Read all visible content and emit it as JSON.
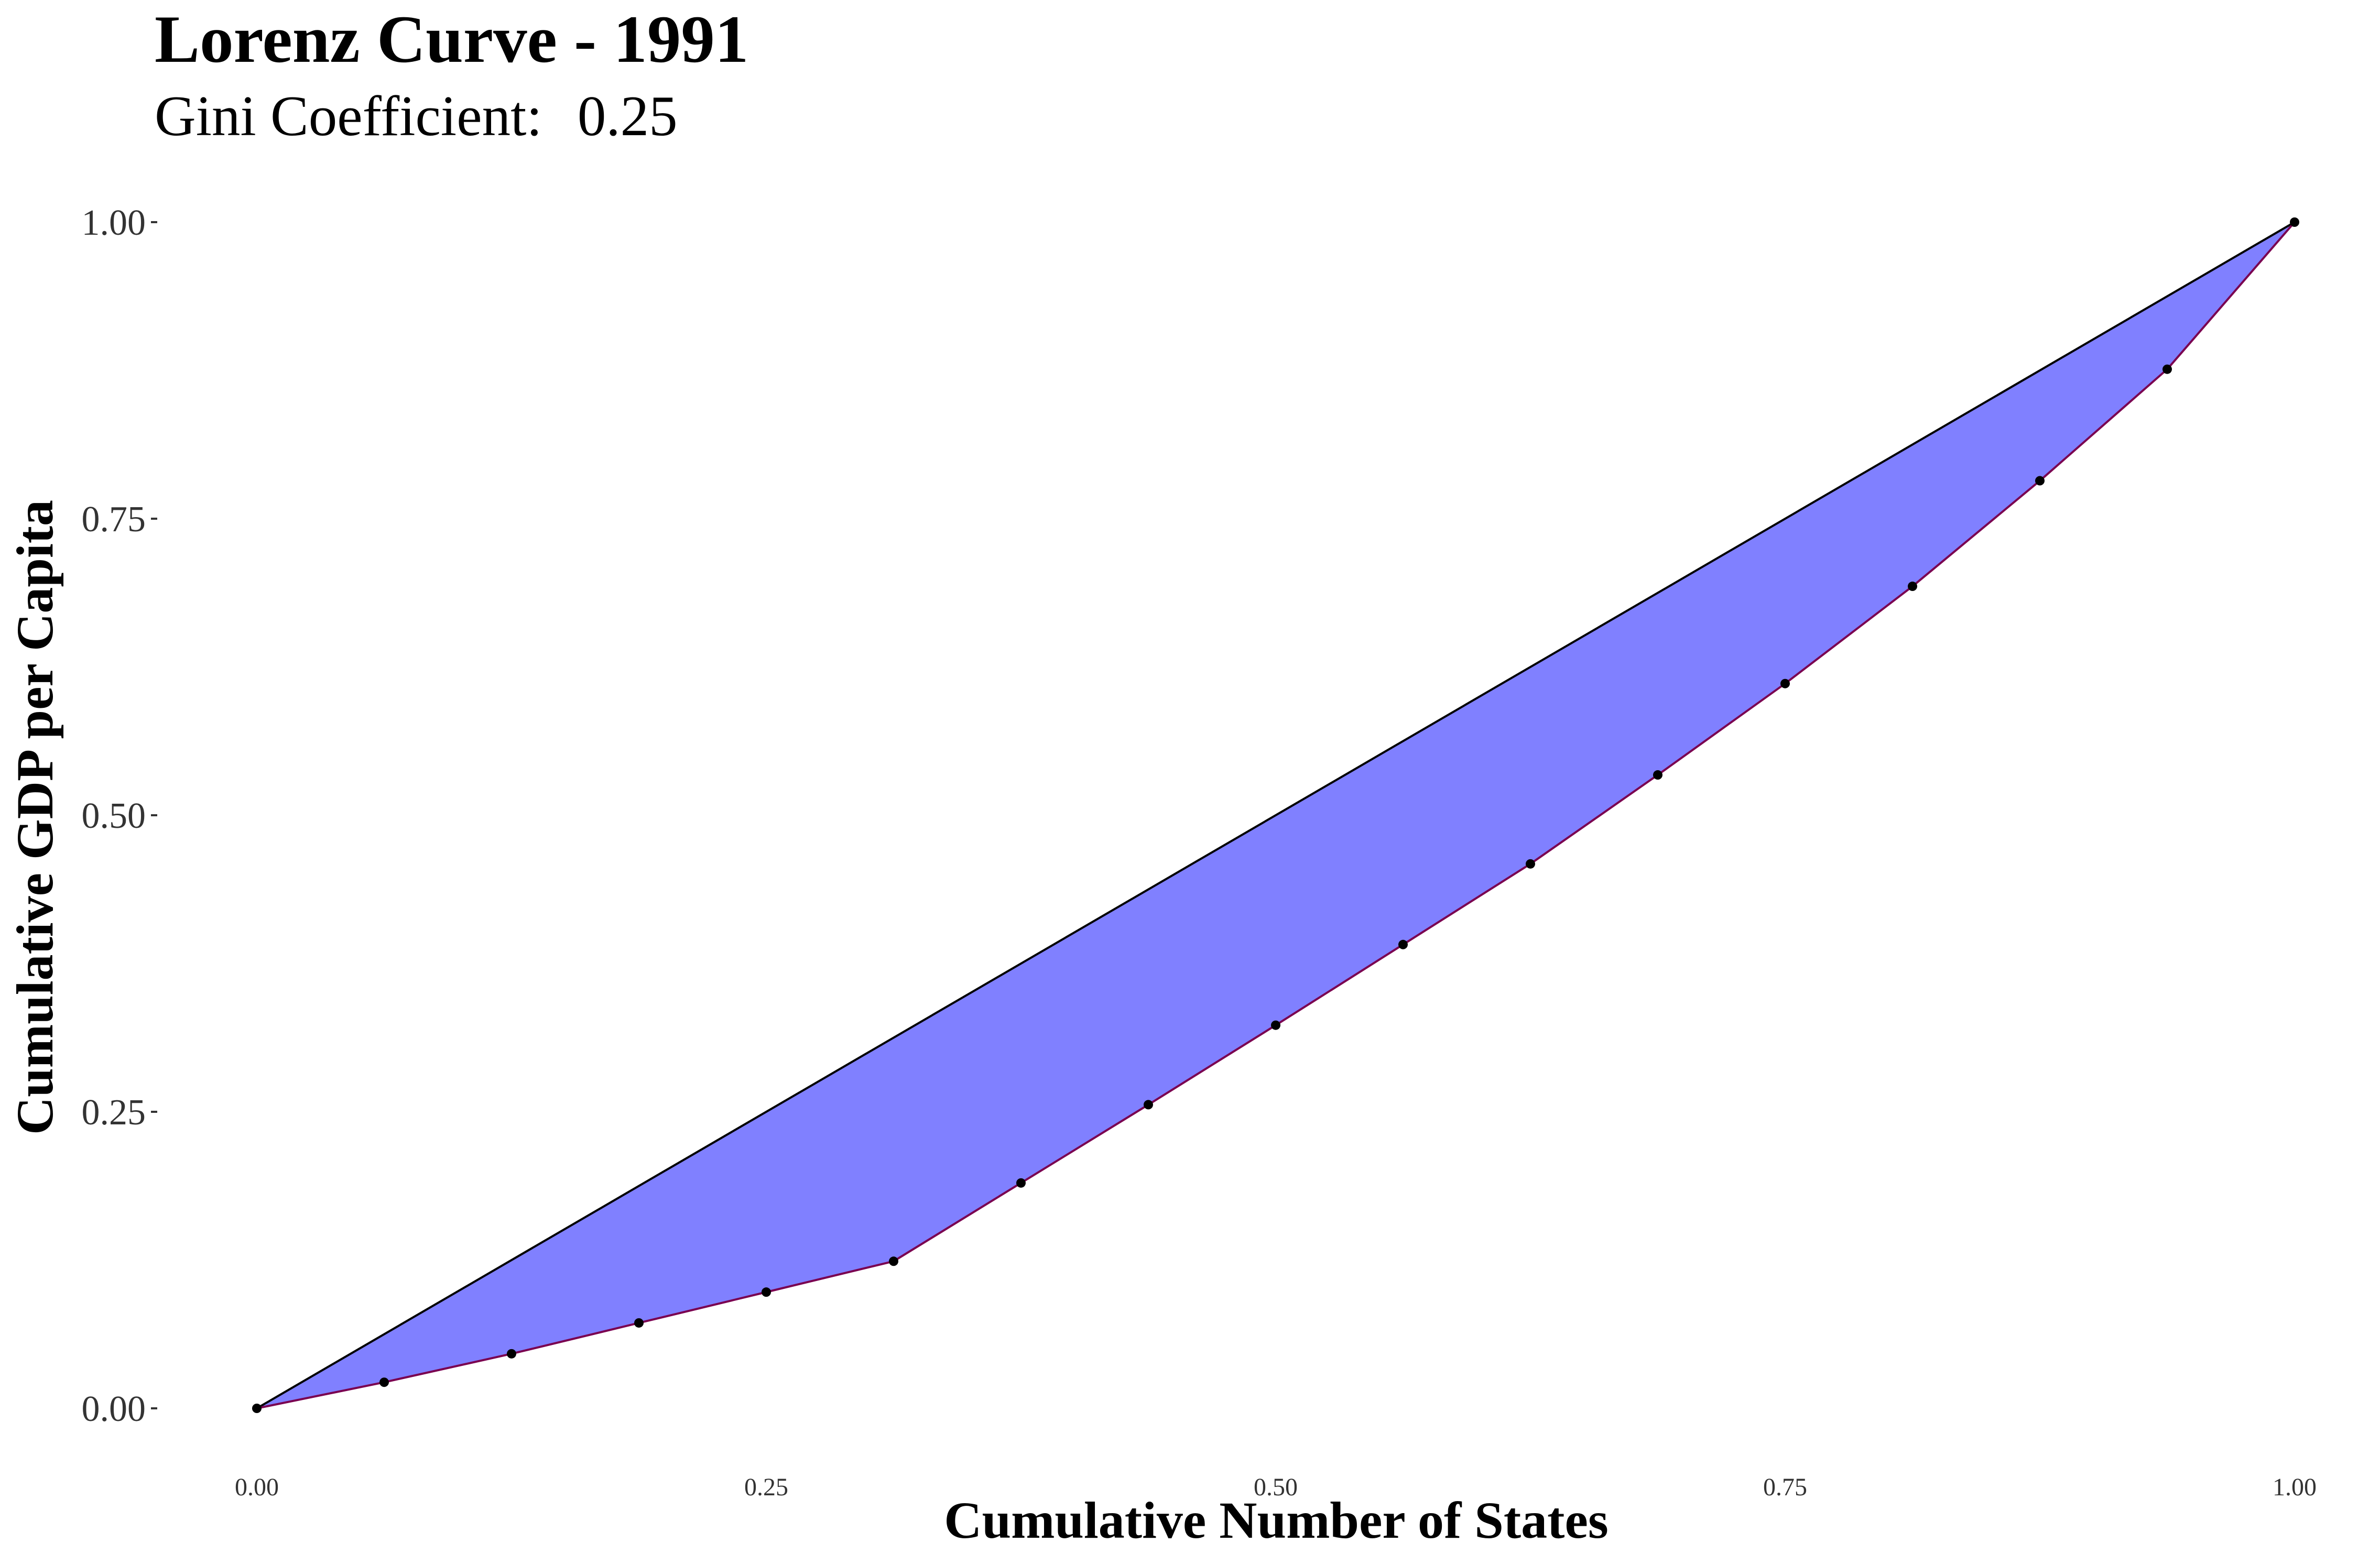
{
  "chart_data": {
    "type": "area",
    "title": "Lorenz Curve - 1991",
    "subtitle_label": "Gini Coefficient:",
    "subtitle_value": "0.25",
    "xlabel": "Cumulative Number of States",
    "ylabel": "Cumulative GDP per Capita",
    "xlim": [
      0,
      1
    ],
    "ylim": [
      0,
      1
    ],
    "x_ticks": [
      {
        "value": 0,
        "label": "0.00"
      },
      {
        "value": 0.25,
        "label": "0.25"
      },
      {
        "value": 0.5,
        "label": "0.50"
      },
      {
        "value": 0.75,
        "label": "0.75"
      },
      {
        "value": 1,
        "label": "1.00"
      }
    ],
    "y_ticks": [
      {
        "value": 0,
        "label": "0.00"
      },
      {
        "value": 0.25,
        "label": "0.25"
      },
      {
        "value": 0.5,
        "label": "0.50"
      },
      {
        "value": 0.75,
        "label": "0.75"
      },
      {
        "value": 1,
        "label": "1.00"
      }
    ],
    "grid": false,
    "legend": "none",
    "series": [
      {
        "role": "lorenz-curve",
        "x": [
          0,
          0.0625,
          0.125,
          0.1875,
          0.25,
          0.3125,
          0.375,
          0.4375,
          0.5,
          0.5625,
          0.625,
          0.6875,
          0.75,
          0.8125,
          0.875,
          0.9375,
          1.0
        ],
        "y": [
          0,
          0.022,
          0.046,
          0.072,
          0.098,
          0.124,
          0.19,
          0.256,
          0.323,
          0.391,
          0.459,
          0.534,
          0.611,
          0.693,
          0.782,
          0.876,
          1.0
        ]
      },
      {
        "role": "line-of-equality",
        "x": [
          0,
          1
        ],
        "y": [
          0,
          1
        ]
      }
    ],
    "colors": {
      "fill": "#8080FF",
      "curve_line": "#7A0050",
      "equality_line": "#000000",
      "points": "#000000"
    }
  }
}
